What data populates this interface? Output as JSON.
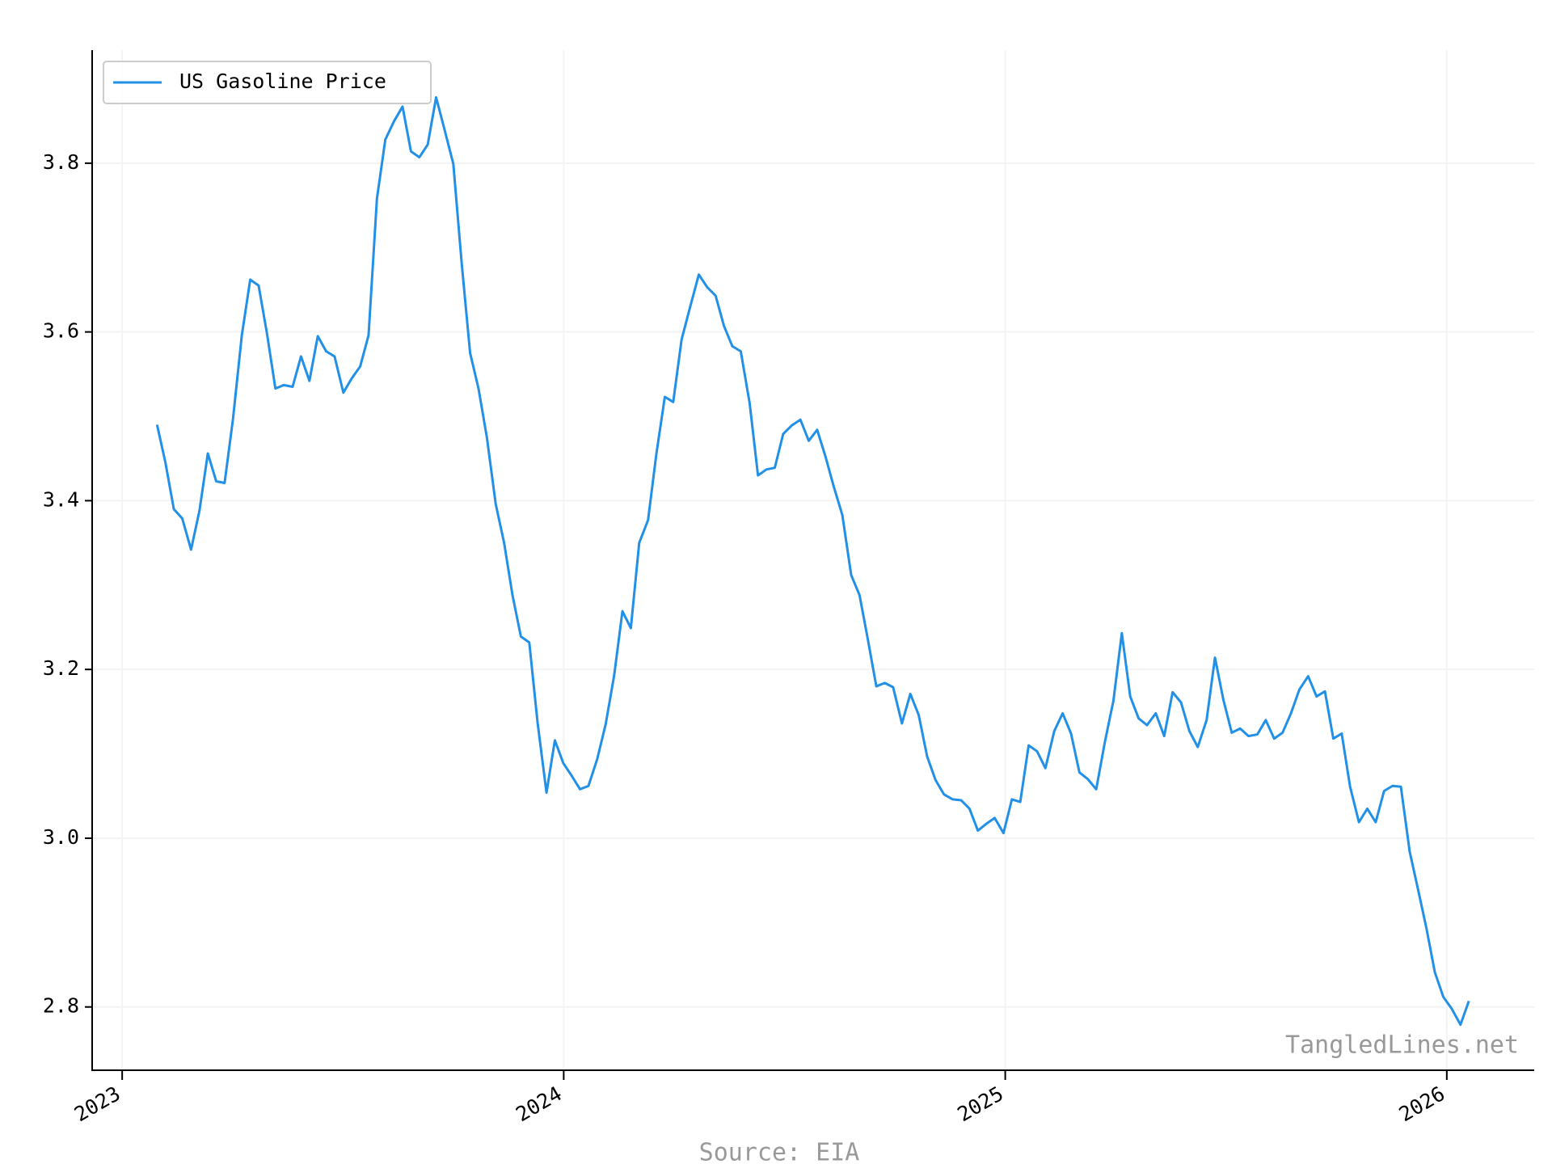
{
  "chart_data": {
    "type": "line",
    "series": [
      {
        "name": "US Gasoline Price",
        "color": "#2190e6",
        "values": [
          3.49,
          3.445,
          3.39,
          3.379,
          3.342,
          3.388,
          3.456,
          3.423,
          3.421,
          3.497,
          3.596,
          3.662,
          3.655,
          3.598,
          3.533,
          3.537,
          3.535,
          3.571,
          3.542,
          3.595,
          3.577,
          3.571,
          3.528,
          3.545,
          3.559,
          3.596,
          3.758,
          3.828,
          3.85,
          3.867,
          3.814,
          3.807,
          3.822,
          3.878,
          3.838,
          3.799,
          3.681,
          3.575,
          3.533,
          3.475,
          3.396,
          3.35,
          3.288,
          3.239,
          3.232,
          3.136,
          3.054,
          3.116,
          3.089,
          3.074,
          3.058,
          3.062,
          3.094,
          3.135,
          3.192,
          3.269,
          3.249,
          3.35,
          3.377,
          3.456,
          3.523,
          3.517,
          3.591,
          3.629,
          3.668,
          3.653,
          3.643,
          3.607,
          3.583,
          3.577,
          3.516,
          3.43,
          3.437,
          3.439,
          3.479,
          3.489,
          3.496,
          3.471,
          3.484,
          3.452,
          3.416,
          3.383,
          3.312,
          3.288,
          3.235,
          3.18,
          3.184,
          3.179,
          3.136,
          3.171,
          3.146,
          3.097,
          3.069,
          3.052,
          3.046,
          3.045,
          3.035,
          3.009,
          3.017,
          3.024,
          3.006,
          3.046,
          3.043,
          3.11,
          3.103,
          3.083,
          3.127,
          3.148,
          3.124,
          3.078,
          3.07,
          3.058,
          3.115,
          3.163,
          3.243,
          3.168,
          3.142,
          3.134,
          3.148,
          3.121,
          3.173,
          3.161,
          3.127,
          3.108,
          3.14,
          3.214,
          3.164,
          3.125,
          3.13,
          3.121,
          3.123,
          3.14,
          3.118,
          3.125,
          3.148,
          3.176,
          3.192,
          3.168,
          3.174,
          3.118,
          3.124,
          3.061,
          3.019,
          3.035,
          3.019,
          3.056,
          3.062,
          3.061,
          2.984,
          2.939,
          2.893,
          2.841,
          2.812,
          2.798,
          2.779,
          2.807
        ]
      }
    ],
    "x": [
      2023.079,
      2023.098,
      2023.117,
      2023.136,
      2023.156,
      2023.175,
      2023.194,
      2023.213,
      2023.232,
      2023.251,
      2023.271,
      2023.29,
      2023.309,
      2023.328,
      2023.347,
      2023.366,
      2023.386,
      2023.405,
      2023.424,
      2023.443,
      2023.462,
      2023.481,
      2023.501,
      2023.52,
      2023.539,
      2023.558,
      2023.577,
      2023.596,
      2023.616,
      2023.635,
      2023.654,
      2023.673,
      2023.692,
      2023.711,
      2023.731,
      2023.75,
      2023.769,
      2023.788,
      2023.807,
      2023.826,
      2023.846,
      2023.865,
      2023.884,
      2023.903,
      2023.922,
      2023.941,
      2023.961,
      2023.98,
      2023.999,
      2024.018,
      2024.037,
      2024.056,
      2024.076,
      2024.095,
      2024.114,
      2024.133,
      2024.152,
      2024.171,
      2024.191,
      2024.21,
      2024.229,
      2024.248,
      2024.267,
      2024.286,
      2024.306,
      2024.325,
      2024.344,
      2024.363,
      2024.382,
      2024.401,
      2024.421,
      2024.44,
      2024.459,
      2024.478,
      2024.497,
      2024.516,
      2024.536,
      2024.555,
      2024.574,
      2024.593,
      2024.612,
      2024.631,
      2024.651,
      2024.67,
      2024.689,
      2024.708,
      2024.727,
      2024.746,
      2024.766,
      2024.785,
      2024.804,
      2024.823,
      2024.842,
      2024.861,
      2024.881,
      2024.9,
      2024.919,
      2024.938,
      2024.957,
      2024.976,
      2024.996,
      2025.015,
      2025.034,
      2025.053,
      2025.072,
      2025.091,
      2025.111,
      2025.13,
      2025.149,
      2025.168,
      2025.187,
      2025.206,
      2025.226,
      2025.245,
      2025.264,
      2025.283,
      2025.302,
      2025.321,
      2025.341,
      2025.36,
      2025.379,
      2025.398,
      2025.417,
      2025.436,
      2025.456,
      2025.475,
      2025.494,
      2025.513,
      2025.532,
      2025.551,
      2025.571,
      2025.59,
      2025.609,
      2025.628,
      2025.647,
      2025.666,
      2025.686,
      2025.705,
      2025.724,
      2025.743,
      2025.762,
      2025.781,
      2025.801,
      2025.82,
      2025.839,
      2025.858,
      2025.877,
      2025.896,
      2025.916,
      2025.935,
      2025.954,
      2025.973,
      2025.992,
      2026.011,
      2026.031,
      2026.05
    ],
    "xlim": [
      2022.932,
      2026.198
    ],
    "xticks": [
      2023,
      2024,
      2025,
      2026
    ],
    "ylim": [
      2.725,
      3.934
    ],
    "yticks": [
      2.8,
      {
        "value": 3.0,
        "label": "3.0"
      },
      3.2,
      3.4,
      3.6,
      3.8
    ],
    "grid": true,
    "legend": "upper left",
    "watermark": "TangledLines.net",
    "source": "Source: EIA"
  }
}
